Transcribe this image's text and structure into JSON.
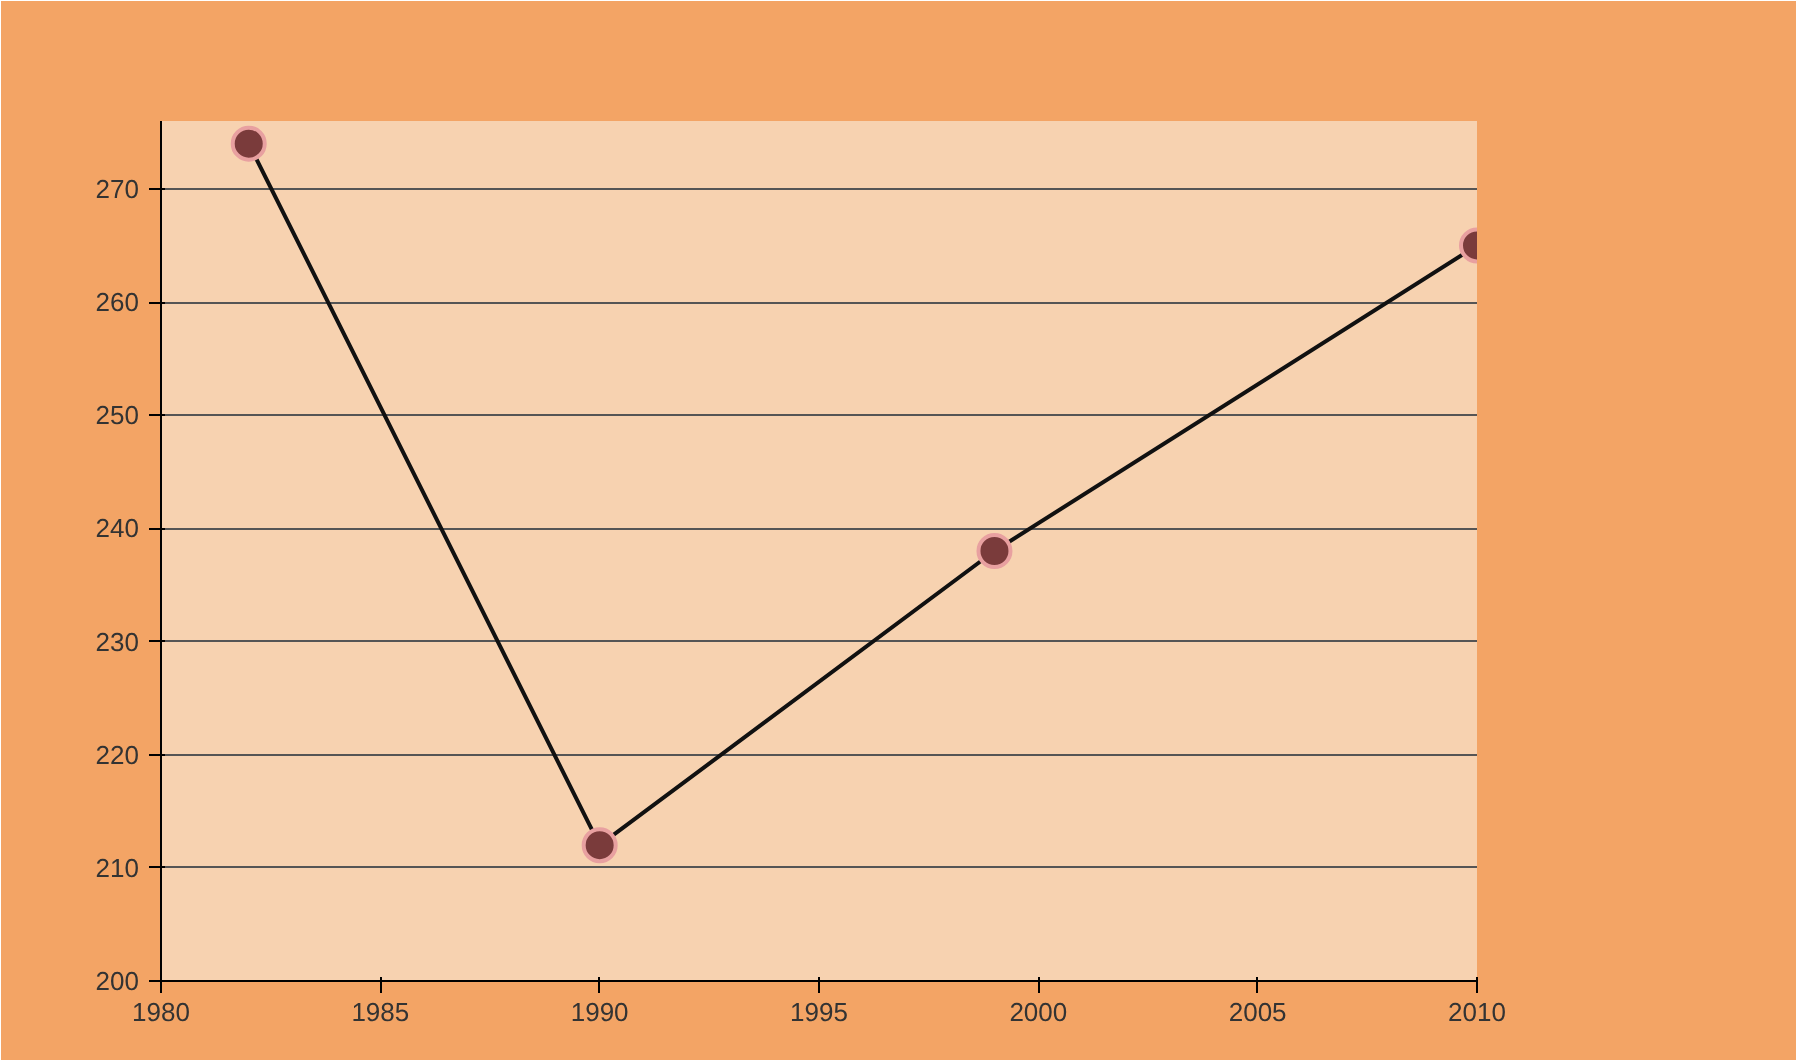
{
  "chart_data": {
    "type": "line",
    "x": [
      1982,
      1990,
      1999,
      2010
    ],
    "series": [
      {
        "color": "#7a3b3b",
        "values": [
          274,
          212,
          238,
          265
        ]
      }
    ],
    "xlim": [
      1980,
      2010
    ],
    "ylim": [
      200,
      276
    ],
    "xticks": [
      1980,
      1985,
      1990,
      1995,
      2000,
      2005,
      2010
    ],
    "yticks": [
      200,
      210,
      220,
      230,
      240,
      250,
      260,
      270
    ],
    "grid": "y",
    "marker": "circle",
    "line_style": "solid"
  }
}
